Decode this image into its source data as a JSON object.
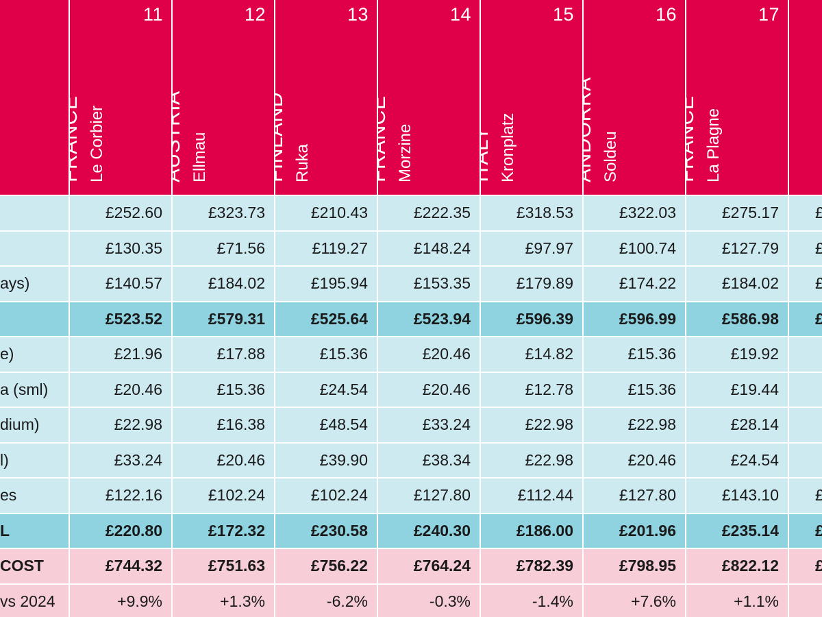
{
  "columns": [
    {
      "rank": "11",
      "country": "FRANCE",
      "resort": "Le Corbier"
    },
    {
      "rank": "12",
      "country": "AUSTRIA",
      "resort": "Ellmau"
    },
    {
      "rank": "13",
      "country": "FINLAND",
      "resort": "Ruka"
    },
    {
      "rank": "14",
      "country": "FRANCE",
      "resort": "Morzine"
    },
    {
      "rank": "15",
      "country": "ITALY",
      "resort": "Kronplatz"
    },
    {
      "rank": "16",
      "country": "ANDORRA",
      "resort": "Soldeu"
    },
    {
      "rank": "17",
      "country": "FRANCE",
      "resort": "La Plagne"
    }
  ],
  "rows": [
    {
      "label": "",
      "style": "light",
      "peek": "£",
      "values": [
        "£252.60",
        "£323.73",
        "£210.43",
        "£222.35",
        "£318.53",
        "£322.03",
        "£275.17"
      ]
    },
    {
      "label": "",
      "style": "light",
      "peek": "£",
      "values": [
        "£130.35",
        "£71.56",
        "£119.27",
        "£148.24",
        "£97.97",
        "£100.74",
        "£127.79"
      ]
    },
    {
      "label": "ays)",
      "style": "light",
      "peek": "£",
      "values": [
        "£140.57",
        "£184.02",
        "£195.94",
        "£153.35",
        "£179.89",
        "£174.22",
        "£184.02"
      ]
    },
    {
      "label": "",
      "style": "sub",
      "peek": "£",
      "values": [
        "£523.52",
        "£579.31",
        "£525.64",
        "£523.94",
        "£596.39",
        "£596.99",
        "£586.98"
      ]
    },
    {
      "label": "e)",
      "style": "light",
      "peek": "",
      "values": [
        "£21.96",
        "£17.88",
        "£15.36",
        "£20.46",
        "£14.82",
        "£15.36",
        "£19.92"
      ]
    },
    {
      "label": "a (sml)",
      "style": "light",
      "peek": "",
      "values": [
        "£20.46",
        "£15.36",
        "£24.54",
        "£20.46",
        "£12.78",
        "£15.36",
        "£19.44"
      ]
    },
    {
      "label": "dium)",
      "style": "light",
      "peek": "",
      "values": [
        "£22.98",
        "£16.38",
        "£48.54",
        "£33.24",
        "£22.98",
        "£22.98",
        "£28.14"
      ]
    },
    {
      "label": "l)",
      "style": "light",
      "peek": "",
      "values": [
        "£33.24",
        "£20.46",
        "£39.90",
        "£38.34",
        "£22.98",
        "£20.46",
        "£24.54"
      ]
    },
    {
      "label": "es",
      "style": "light",
      "peek": "£",
      "values": [
        "£122.16",
        "£102.24",
        "£102.24",
        "£127.80",
        "£112.44",
        "£127.80",
        "£143.10"
      ]
    },
    {
      "label": "L",
      "style": "sub",
      "peek": "£",
      "values": [
        "£220.80",
        "£172.32",
        "£230.58",
        "£240.30",
        "£186.00",
        "£201.96",
        "£235.14"
      ]
    },
    {
      "label": "COST",
      "style": "total",
      "peek": "£",
      "values": [
        "£744.32",
        "£751.63",
        "£756.22",
        "£764.24",
        "£782.39",
        "£798.95",
        "£822.12"
      ]
    },
    {
      "label": "vs 2024",
      "style": "change",
      "peek": "",
      "values": [
        "+9.9%",
        "+1.3%",
        "-6.2%",
        "-0.3%",
        "-1.4%",
        "+7.6%",
        "+1.1%"
      ]
    }
  ],
  "colors": {
    "header": "#e0004a",
    "row_light": "#cdeaf1",
    "row_subtotal": "#8fd3e0",
    "row_total": "#f7cdd8"
  }
}
